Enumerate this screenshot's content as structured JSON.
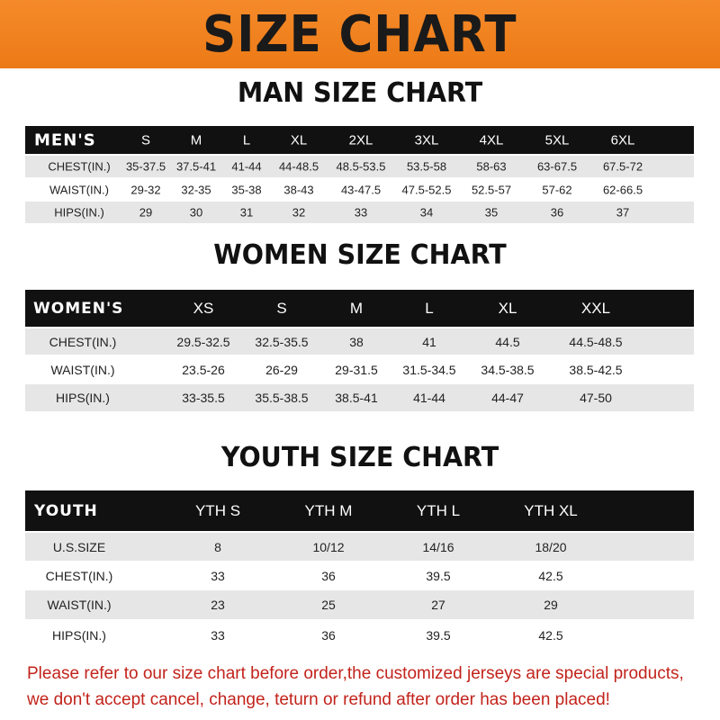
{
  "title": "SIZE CHART",
  "colors": {
    "banner": "#f0801c",
    "header_row": "#111111",
    "note": "#c2231b"
  },
  "men": {
    "title": "MAN SIZE CHART",
    "header": [
      "MEN'S",
      "S",
      "M",
      "L",
      "XL",
      "2XL",
      "3XL",
      "4XL",
      "5XL",
      "6XL"
    ],
    "rows": [
      [
        "CHEST(IN.)",
        "35-37.5",
        "37.5-41",
        "41-44",
        "44-48.5",
        "48.5-53.5",
        "53.5-58",
        "58-63",
        "63-67.5",
        "67.5-72"
      ],
      [
        "WAIST(IN.)",
        "29-32",
        "32-35",
        "35-38",
        "38-43",
        "43-47.5",
        "47.5-52.5",
        "52.5-57",
        "57-62",
        "62-66.5"
      ],
      [
        "HIPS(IN.)",
        "29",
        "30",
        "31",
        "32",
        "33",
        "34",
        "35",
        "36",
        "37"
      ]
    ]
  },
  "women": {
    "title": "WOMEN SIZE CHART",
    "header": [
      "WOMEN'S",
      "XS",
      "S",
      "M",
      "L",
      "XL",
      "XXL"
    ],
    "rows": [
      [
        "CHEST(IN.)",
        "29.5-32.5",
        "32.5-35.5",
        "38",
        "41",
        "44.5",
        "44.5-48.5"
      ],
      [
        "WAIST(IN.)",
        "23.5-26",
        "26-29",
        "29-31.5",
        "31.5-34.5",
        "34.5-38.5",
        "38.5-42.5"
      ],
      [
        "HIPS(IN.)",
        "33-35.5",
        "35.5-38.5",
        "38.5-41",
        "41-44",
        "44-47",
        "47-50"
      ]
    ]
  },
  "youth": {
    "title": "YOUTH SIZE CHART",
    "header": [
      "YOUTH",
      "YTH S",
      "YTH M",
      "YTH L",
      "YTH XL"
    ],
    "rows": [
      [
        "U.S.SIZE",
        "8",
        "10/12",
        "14/16",
        "18/20"
      ],
      [
        "CHEST(IN.)",
        "33",
        "36",
        "39.5",
        "42.5"
      ],
      [
        "WAIST(IN.)",
        "23",
        "25",
        "27",
        "29"
      ],
      [
        "HIPS(IN.)",
        "33",
        "36",
        "39.5",
        "42.5"
      ]
    ]
  },
  "note": {
    "line1": "Please refer to our size chart before order,the customized jerseys are special products,",
    "line2": "we don't accept cancel, change, teturn or refund after order has been placed!"
  }
}
